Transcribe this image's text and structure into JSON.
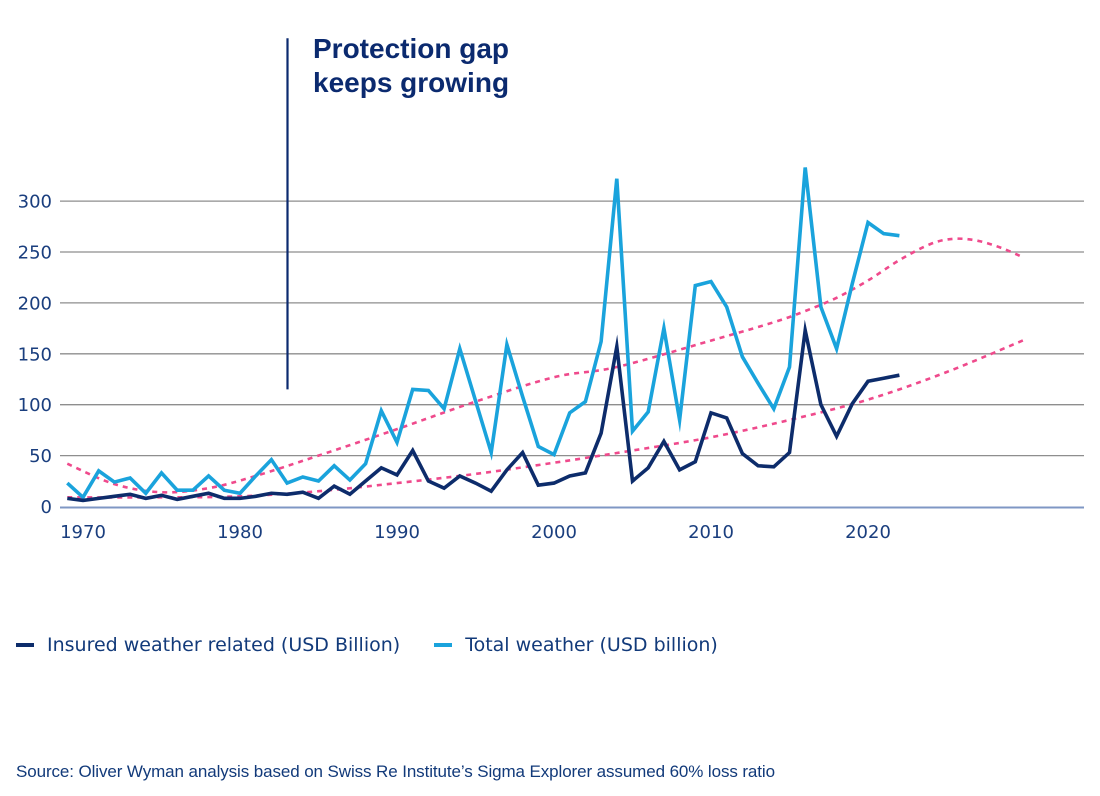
{
  "annotation": {
    "title_line1": "Protection gap",
    "title_line2": "keeps growing",
    "marker_year": 1983,
    "marker_top_value": 460,
    "marker_bottom_value": 115
  },
  "legend": {
    "items": [
      {
        "label": "Insured weather related (USD Billion)",
        "color": "#0d2c6b"
      },
      {
        "label": "Total weather (USD billion)",
        "color": "#1aa3dc"
      }
    ]
  },
  "source": "Source: Oliver  Wyman analysis based on Swiss Re Institute’s  Sigma Explorer assumed  60% loss ratio",
  "colors": {
    "insured": "#0d2c6b",
    "total": "#1aa3dc",
    "trend": "#ef4a8c",
    "grid": "#8e8e8e",
    "axis": "#7f97c4",
    "text": "#1a3e7e"
  },
  "chart_data": {
    "type": "line",
    "title": "Protection gap keeps growing",
    "xlabel": "",
    "ylabel": "",
    "xlim": [
      1969,
      2035
    ],
    "ylim": [
      0,
      300
    ],
    "grid": true,
    "legend_position": "bottom",
    "x_ticks": [
      1970,
      1980,
      1990,
      2000,
      2010,
      2020
    ],
    "y_ticks": [
      0,
      50,
      100,
      150,
      200,
      250,
      300
    ],
    "x": [
      1969,
      1970,
      1971,
      1972,
      1973,
      1974,
      1975,
      1976,
      1977,
      1978,
      1979,
      1980,
      1981,
      1982,
      1983,
      1984,
      1985,
      1986,
      1987,
      1988,
      1989,
      1990,
      1991,
      1992,
      1993,
      1994,
      1995,
      1996,
      1997,
      1998,
      1999,
      2000,
      2001,
      2002,
      2003,
      2004,
      2005,
      2006,
      2007,
      2008,
      2009,
      2010,
      2011,
      2012,
      2013,
      2014,
      2015,
      2016,
      2017,
      2018,
      2019,
      2020,
      2021,
      2022
    ],
    "series": [
      {
        "name": "Insured weather related (USD Billion)",
        "values": [
          8,
          6,
          8,
          10,
          12,
          8,
          11,
          7,
          10,
          13,
          8,
          8,
          10,
          13,
          12,
          14,
          8,
          20,
          12,
          25,
          38,
          31,
          55,
          25,
          18,
          30,
          23,
          15,
          36,
          53,
          21,
          23,
          30,
          33,
          72,
          157,
          25,
          38,
          64,
          36,
          44,
          92,
          87,
          52,
          40,
          39,
          53,
          173,
          100,
          69,
          101,
          123,
          126,
          129
        ]
      },
      {
        "name": "Total weather (USD billion)",
        "values": [
          23,
          9,
          35,
          24,
          28,
          13,
          33,
          16,
          16,
          30,
          16,
          13,
          30,
          46,
          23,
          29,
          25,
          40,
          26,
          42,
          94,
          63,
          115,
          114,
          96,
          155,
          104,
          53,
          159,
          108,
          59,
          51,
          92,
          103,
          162,
          322,
          74,
          93,
          175,
          85,
          217,
          221,
          196,
          147,
          121,
          96,
          137,
          333,
          196,
          155,
          219,
          279,
          268,
          266
        ]
      }
    ],
    "trendlines": [
      {
        "name": "Total weather trend",
        "style": "dotted",
        "points": [
          [
            1969,
            42
          ],
          [
            1972,
            22
          ],
          [
            1975,
            14
          ],
          [
            1978,
            18
          ],
          [
            1981,
            30
          ],
          [
            1985,
            50
          ],
          [
            1990,
            76
          ],
          [
            1995,
            103
          ],
          [
            2000,
            127
          ],
          [
            2004,
            137
          ],
          [
            2010,
            163
          ],
          [
            2014,
            181
          ],
          [
            2016,
            192
          ],
          [
            2018,
            205
          ],
          [
            2020,
            222
          ],
          [
            2022,
            242
          ],
          [
            2024,
            258
          ],
          [
            2025.5,
            263
          ],
          [
            2027,
            261
          ],
          [
            2028.5,
            254
          ],
          [
            2029.7,
            246
          ]
        ]
      },
      {
        "name": "Insured weather trend",
        "style": "dotted",
        "points": [
          [
            1969,
            9
          ],
          [
            1975,
            9
          ],
          [
            1980,
            10
          ],
          [
            1985,
            15
          ],
          [
            1990,
            23
          ],
          [
            1995,
            32
          ],
          [
            2000,
            43
          ],
          [
            2005,
            55
          ],
          [
            2010,
            68
          ],
          [
            2015,
            85
          ],
          [
            2020,
            105
          ],
          [
            2025,
            132
          ],
          [
            2030,
            164
          ]
        ]
      }
    ]
  }
}
